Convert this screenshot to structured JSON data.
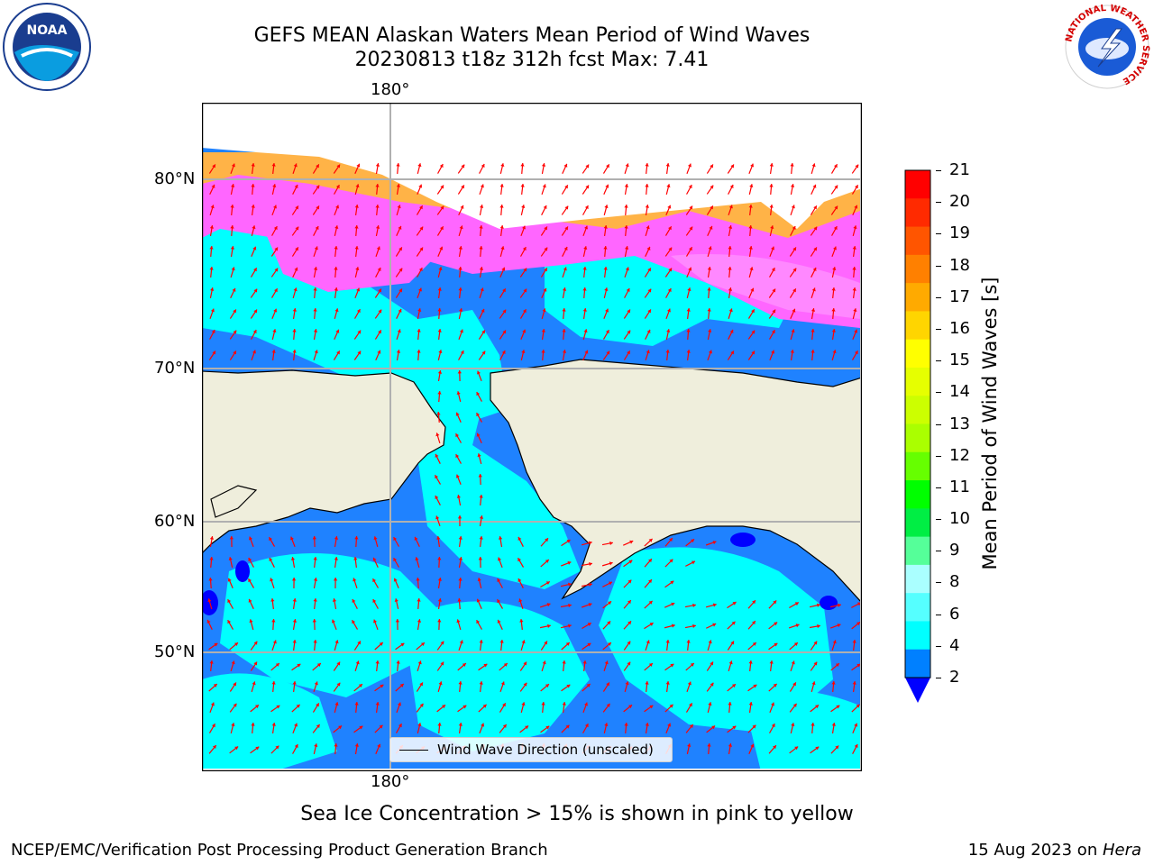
{
  "title": {
    "line1": "GEFS MEAN Alaskan Waters Mean Period of Wind Waves",
    "line2": "20230813 t18z 312h fcst   Max: 7.41"
  },
  "map": {
    "lon_labels": [
      "180°",
      "180°"
    ],
    "lat_labels": [
      "80°N",
      "70°N",
      "60°N",
      "50°N"
    ],
    "legend_label": "Wind Wave Direction (unscaled)"
  },
  "colorbar": {
    "label": "Mean Period of Wind Waves [s]",
    "ticks": [
      "21",
      "20",
      "19",
      "18",
      "17",
      "16",
      "15",
      "14",
      "13",
      "12",
      "11",
      "10",
      "9",
      "8",
      "6",
      "4",
      "2"
    ],
    "colors": [
      "#ff0000",
      "#ff2a00",
      "#ff5500",
      "#ff8000",
      "#ffaa00",
      "#ffd500",
      "#ffff00",
      "#e6ff00",
      "#ccff00",
      "#aaff00",
      "#66ff00",
      "#00ff00",
      "#00ee44",
      "#55ff99",
      "#aaffff",
      "#55ffff",
      "#00ffff",
      "#0080ff",
      "#0000ff"
    ],
    "extend_color": "#0000ff"
  },
  "footer": {
    "note": "Sea Ice Concentration > 15% is shown in pink to yellow",
    "credit_left": "NCEP/EMC/Verification Post Processing Product Generation Branch",
    "credit_right_date": "15 Aug 2023 on ",
    "credit_right_host": "Hera"
  },
  "logos": {
    "noaa_text": "NOAA",
    "nws_text": "NATIONAL WEATHER SERVICE"
  },
  "colors": {
    "land": "#efeedc",
    "ocean_low": "#1f82ff",
    "ocean_mid": "#00ffff",
    "ice_pink": "#ff66ff",
    "ice_orange": "#ffb347",
    "arrow": "#ff0000"
  }
}
